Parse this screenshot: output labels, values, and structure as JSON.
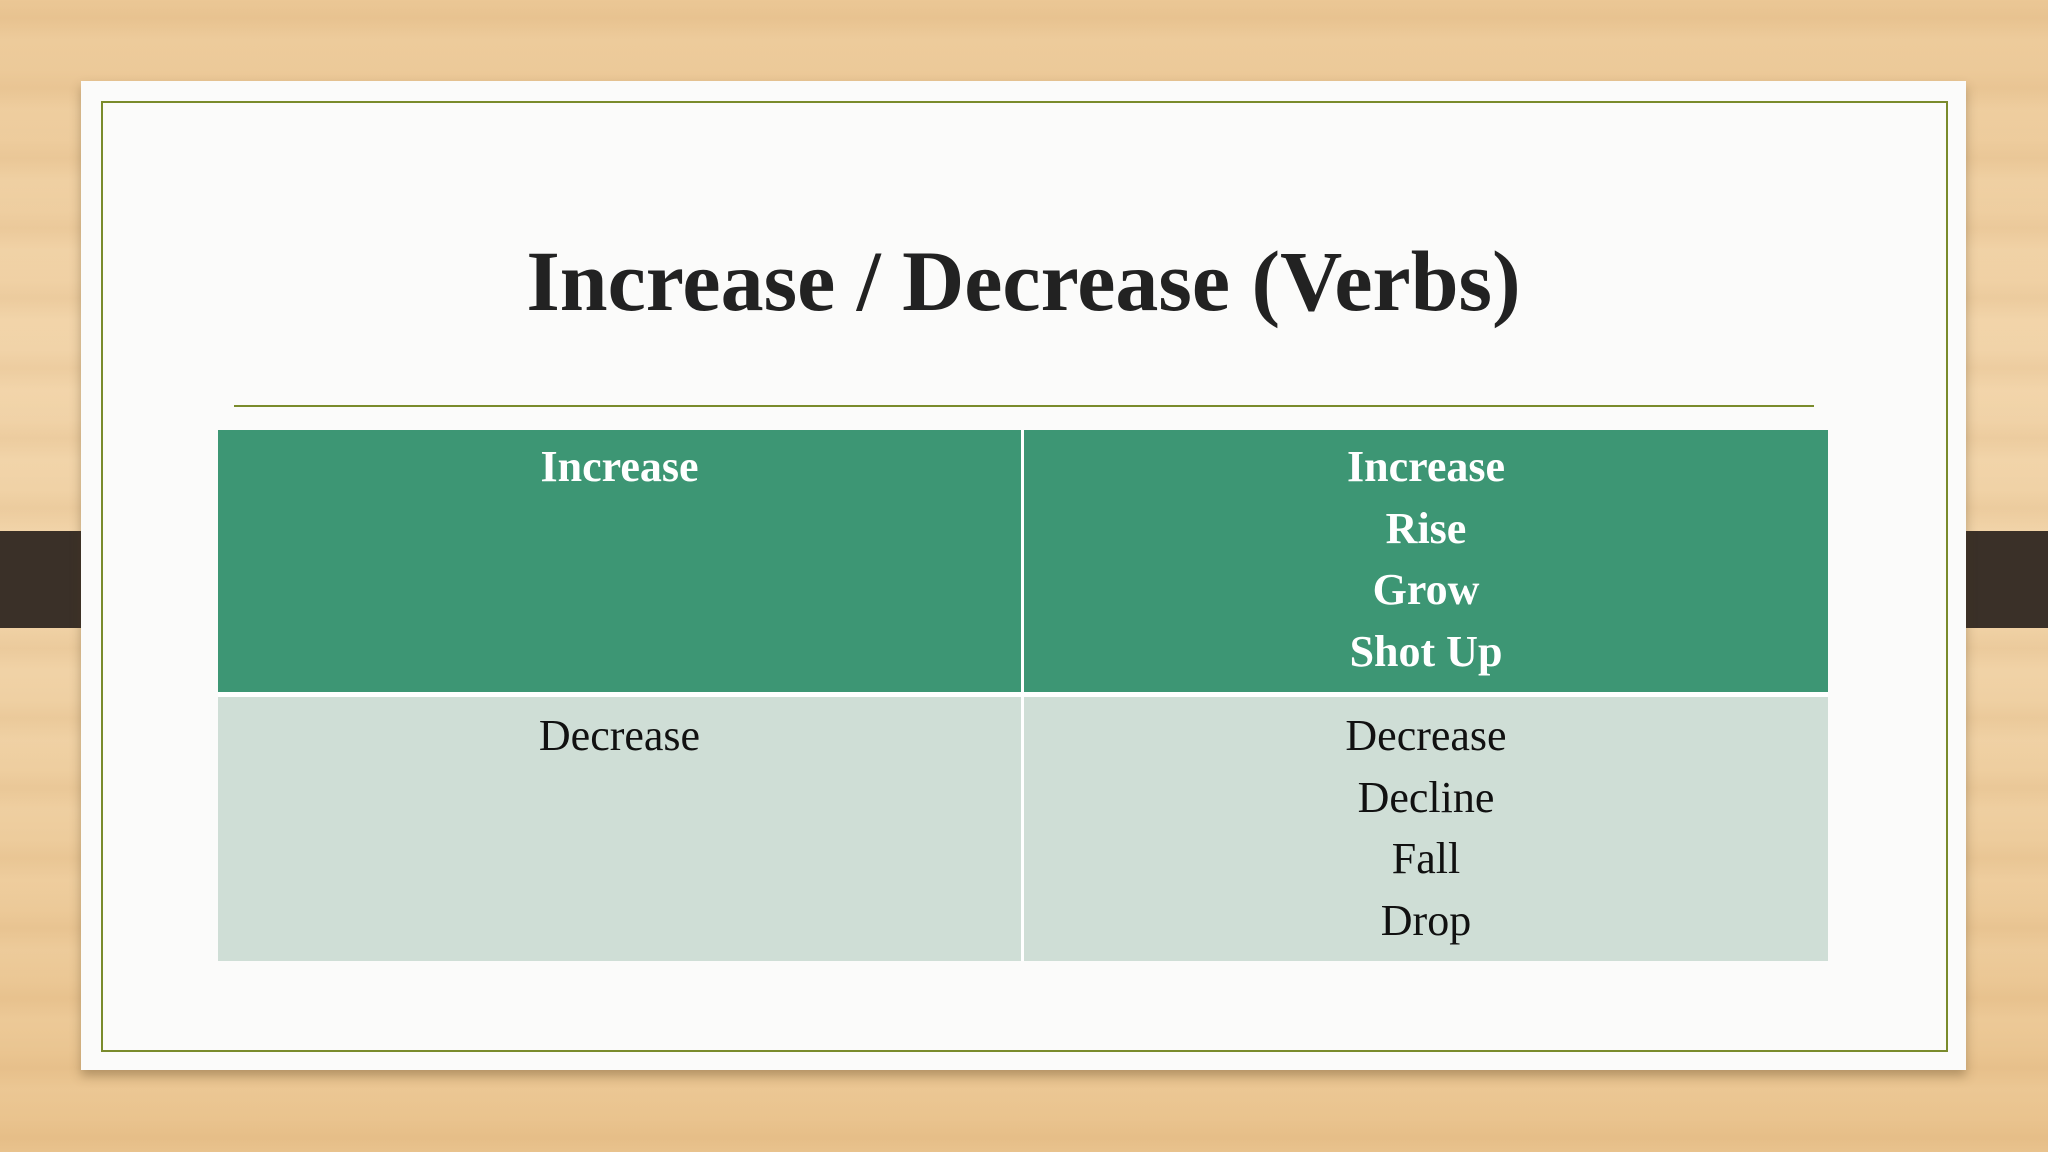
{
  "slide": {
    "title": "Increase / Decrease (Verbs)"
  },
  "table": {
    "rows": [
      {
        "category": "Increase",
        "verbs": [
          "Increase",
          "Rise",
          "Grow",
          "Shot Up"
        ]
      },
      {
        "category": "Decrease",
        "verbs": [
          "Decrease",
          "Decline",
          "Fall",
          "Drop"
        ]
      }
    ]
  },
  "colors": {
    "header_fill": "#3d9674",
    "body_fill": "#cfded6",
    "accent_line": "#7a8b2c",
    "background_wood": "#efd0a3"
  }
}
